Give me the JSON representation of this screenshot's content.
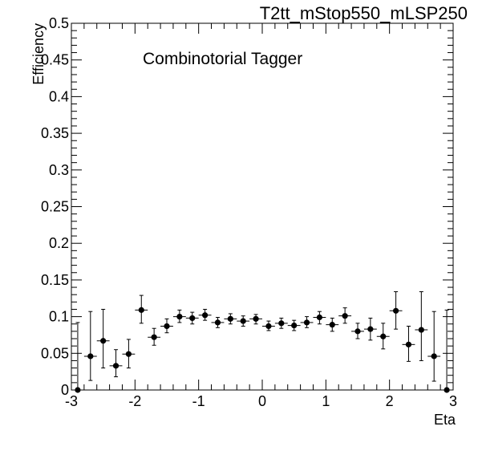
{
  "header": {
    "title": "T2tt_mStop550_mLSP250"
  },
  "legend": {
    "text": "Combinotorial Tagger"
  },
  "chart_data": {
    "type": "scatter",
    "title": "T2tt_mStop550_mLSP250",
    "annotation": "Combinotorial Tagger",
    "xlabel": "Eta",
    "ylabel": "Efficiency",
    "xlim": [
      -3,
      3
    ],
    "ylim": [
      0,
      0.5
    ],
    "xticks": [
      -3,
      -2,
      -1,
      0,
      1,
      2,
      3
    ],
    "xtick_labels": [
      "-3",
      "-2",
      "-1",
      "0",
      "1",
      "2",
      "3"
    ],
    "yticks": [
      0,
      0.05,
      0.1,
      0.15,
      0.2,
      0.25,
      0.3,
      0.35,
      0.4,
      0.45,
      0.5
    ],
    "ytick_labels": [
      "0",
      "0.05",
      "0.1",
      "0.15",
      "0.2",
      "0.25",
      "0.3",
      "0.35",
      "0.4",
      "0.45",
      "0.5"
    ],
    "grid": false,
    "marker_color": "#000000",
    "x_halfwidth": 0.1,
    "points": [
      {
        "x": -2.9,
        "y": 0.0,
        "ylo": 0.0,
        "yhi": 0.092
      },
      {
        "x": -2.7,
        "y": 0.046,
        "ylo": 0.013,
        "yhi": 0.107
      },
      {
        "x": -2.5,
        "y": 0.067,
        "ylo": 0.03,
        "yhi": 0.11
      },
      {
        "x": -2.3,
        "y": 0.033,
        "ylo": 0.018,
        "yhi": 0.055
      },
      {
        "x": -2.1,
        "y": 0.049,
        "ylo": 0.03,
        "yhi": 0.069
      },
      {
        "x": -1.9,
        "y": 0.109,
        "ylo": 0.091,
        "yhi": 0.129
      },
      {
        "x": -1.7,
        "y": 0.072,
        "ylo": 0.061,
        "yhi": 0.084
      },
      {
        "x": -1.5,
        "y": 0.087,
        "ylo": 0.078,
        "yhi": 0.097
      },
      {
        "x": -1.3,
        "y": 0.1,
        "ylo": 0.092,
        "yhi": 0.109
      },
      {
        "x": -1.1,
        "y": 0.098,
        "ylo": 0.09,
        "yhi": 0.106
      },
      {
        "x": -0.9,
        "y": 0.102,
        "ylo": 0.095,
        "yhi": 0.11
      },
      {
        "x": -0.7,
        "y": 0.092,
        "ylo": 0.085,
        "yhi": 0.099
      },
      {
        "x": -0.5,
        "y": 0.097,
        "ylo": 0.09,
        "yhi": 0.104
      },
      {
        "x": -0.3,
        "y": 0.094,
        "ylo": 0.087,
        "yhi": 0.101
      },
      {
        "x": -0.1,
        "y": 0.097,
        "ylo": 0.09,
        "yhi": 0.103
      },
      {
        "x": 0.1,
        "y": 0.087,
        "ylo": 0.081,
        "yhi": 0.094
      },
      {
        "x": 0.3,
        "y": 0.091,
        "ylo": 0.084,
        "yhi": 0.098
      },
      {
        "x": 0.5,
        "y": 0.088,
        "ylo": 0.081,
        "yhi": 0.095
      },
      {
        "x": 0.7,
        "y": 0.092,
        "ylo": 0.085,
        "yhi": 0.1
      },
      {
        "x": 0.9,
        "y": 0.099,
        "ylo": 0.09,
        "yhi": 0.107
      },
      {
        "x": 1.1,
        "y": 0.089,
        "ylo": 0.08,
        "yhi": 0.098
      },
      {
        "x": 1.3,
        "y": 0.101,
        "ylo": 0.091,
        "yhi": 0.112
      },
      {
        "x": 1.5,
        "y": 0.08,
        "ylo": 0.07,
        "yhi": 0.091
      },
      {
        "x": 1.7,
        "y": 0.083,
        "ylo": 0.068,
        "yhi": 0.098
      },
      {
        "x": 1.9,
        "y": 0.073,
        "ylo": 0.056,
        "yhi": 0.091
      },
      {
        "x": 2.1,
        "y": 0.108,
        "ylo": 0.083,
        "yhi": 0.134
      },
      {
        "x": 2.3,
        "y": 0.062,
        "ylo": 0.039,
        "yhi": 0.087
      },
      {
        "x": 2.5,
        "y": 0.082,
        "ylo": 0.04,
        "yhi": 0.134
      },
      {
        "x": 2.7,
        "y": 0.046,
        "ylo": 0.012,
        "yhi": 0.107
      },
      {
        "x": 2.9,
        "y": 0.0,
        "ylo": 0.0,
        "yhi": 0.109
      }
    ]
  }
}
